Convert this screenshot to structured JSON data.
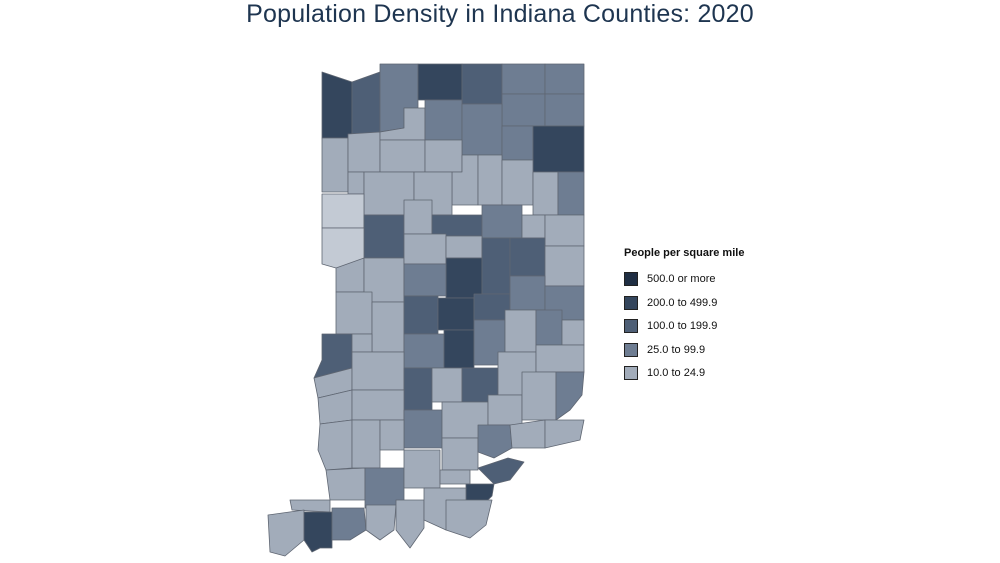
{
  "map": {
    "title": "Population Density in Indiana Counties: 2020",
    "legend": {
      "title": "People per square mile",
      "items": [
        {
          "label": "500.0 or more",
          "color": "#1f2e43"
        },
        {
          "label": "200.0 to 499.9",
          "color": "#34465d"
        },
        {
          "label": "100.0 to 199.9",
          "color": "#4e5f76"
        },
        {
          "label": "25.0 to 99.9",
          "color": "#6e7d92"
        },
        {
          "label": "10.0 to 24.9",
          "color": "#a2acba"
        }
      ]
    },
    "colors": {
      "below_10": "#c3cad4",
      "county_border": "#5f6672"
    }
  }
}
